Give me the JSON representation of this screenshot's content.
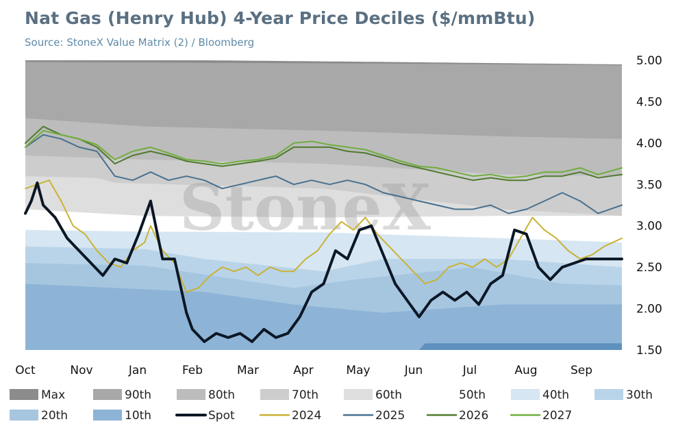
{
  "header": {
    "title": "Nat Gas (Henry Hub) 4-Year Price Deciles ($/mmBtu)",
    "subtitle": "Source: StoneX Value Matrix (2) / Bloomberg"
  },
  "watermark": "StoneX",
  "chart_data": {
    "type": "area",
    "title": "Nat Gas (Henry Hub) 4-Year Price Deciles ($/mmBtu)",
    "x_labels": [
      "Oct",
      "Nov",
      "Jan",
      "Feb",
      "Mar",
      "Apr",
      "May",
      "Jun",
      "Jul",
      "Aug",
      "Sep"
    ],
    "y_ticks": [
      "5.00",
      "4.50",
      "4.00",
      "3.50",
      "3.00",
      "2.50",
      "2.00",
      "1.50"
    ],
    "ylim": [
      1.5,
      5.0
    ],
    "y_axis_side": "right",
    "legend_position": "bottom",
    "deciles": [
      {
        "name": "Max",
        "color": "#8c8c8c",
        "x": [
          0,
          0.3,
          0.6,
          1.0
        ],
        "y": [
          5.0,
          5.0,
          4.98,
          4.95
        ]
      },
      {
        "name": "90th",
        "color": "#a8a8a8",
        "x": [
          0,
          0.3,
          0.6,
          1.0
        ],
        "y": [
          4.98,
          4.97,
          4.96,
          4.94
        ]
      },
      {
        "name": "80th",
        "color": "#bcbcbc",
        "x": [
          0,
          0.2,
          0.5,
          0.8,
          1.0
        ],
        "y": [
          4.3,
          4.2,
          4.15,
          4.08,
          4.05
        ]
      },
      {
        "name": "70th",
        "color": "#cdcdcd",
        "x": [
          0,
          0.2,
          0.5,
          0.8,
          1.0
        ],
        "y": [
          3.85,
          3.8,
          3.75,
          3.62,
          3.6
        ]
      },
      {
        "name": "60th",
        "color": "#dedede",
        "x": [
          0,
          0.12,
          0.15,
          0.5,
          0.8,
          1.0
        ],
        "y": [
          3.6,
          3.58,
          3.52,
          3.45,
          3.2,
          3.12
        ]
      },
      {
        "name": "50th",
        "color": "#ffffff",
        "x": [
          0,
          0.2,
          0.5,
          0.8,
          1.0
        ],
        "y": [
          3.2,
          3.12,
          3.1,
          3.12,
          3.12
        ]
      },
      {
        "name": "40th",
        "color": "#d6e6f2",
        "x": [
          0,
          0.2,
          0.5,
          0.8,
          1.0
        ],
        "y": [
          2.95,
          2.93,
          2.92,
          2.85,
          2.8
        ]
      },
      {
        "name": "30th",
        "color": "#b9d4e9",
        "x": [
          0,
          0.2,
          0.3,
          0.5,
          0.6,
          0.8,
          1.0
        ],
        "y": [
          2.75,
          2.72,
          2.6,
          2.45,
          2.6,
          2.6,
          2.5
        ]
      },
      {
        "name": "20th",
        "color": "#a6c6e0",
        "x": [
          0,
          0.2,
          0.45,
          0.55,
          0.75,
          0.9,
          1.0
        ],
        "y": [
          2.55,
          2.52,
          2.25,
          2.35,
          2.5,
          2.3,
          2.28
        ]
      },
      {
        "name": "10th",
        "color": "#8db4d6",
        "x": [
          0,
          0.3,
          0.45,
          0.6,
          0.8,
          1.0
        ],
        "y": [
          2.3,
          2.2,
          2.05,
          1.95,
          2.05,
          2.05
        ]
      }
    ],
    "spot_floor": {
      "color": "#5f91bf",
      "x": [
        0,
        0.66,
        0.67,
        1.0
      ],
      "y": [
        1.5,
        1.5,
        1.58,
        1.58
      ]
    },
    "series": [
      {
        "name": "Spot",
        "color": "#0c1725",
        "width": 4,
        "x": [
          0,
          0.01,
          0.02,
          0.03,
          0.05,
          0.07,
          0.09,
          0.11,
          0.13,
          0.15,
          0.17,
          0.19,
          0.21,
          0.23,
          0.25,
          0.27,
          0.28,
          0.3,
          0.32,
          0.34,
          0.36,
          0.38,
          0.4,
          0.42,
          0.44,
          0.46,
          0.48,
          0.5,
          0.52,
          0.54,
          0.56,
          0.58,
          0.6,
          0.62,
          0.64,
          0.66,
          0.68,
          0.7,
          0.72,
          0.74,
          0.76,
          0.78,
          0.8,
          0.82,
          0.84,
          0.86,
          0.88,
          0.9,
          0.92,
          0.94,
          0.96,
          0.98,
          1.0
        ],
        "y": [
          3.15,
          3.3,
          3.52,
          3.25,
          3.1,
          2.85,
          2.7,
          2.55,
          2.4,
          2.6,
          2.55,
          2.9,
          3.3,
          2.6,
          2.6,
          1.95,
          1.75,
          1.6,
          1.7,
          1.65,
          1.7,
          1.6,
          1.75,
          1.65,
          1.7,
          1.9,
          2.2,
          2.3,
          2.7,
          2.6,
          2.95,
          3.0,
          2.65,
          2.3,
          2.1,
          1.9,
          2.1,
          2.2,
          2.1,
          2.2,
          2.05,
          2.3,
          2.4,
          2.95,
          2.9,
          2.5,
          2.35,
          2.5,
          2.55,
          2.6,
          2.6,
          2.6,
          2.6
        ]
      },
      {
        "name": "2024",
        "color": "#c9b233",
        "width": 2,
        "x": [
          0,
          0.02,
          0.04,
          0.06,
          0.08,
          0.1,
          0.12,
          0.14,
          0.16,
          0.18,
          0.2,
          0.21,
          0.23,
          0.25,
          0.27,
          0.29,
          0.31,
          0.33,
          0.35,
          0.37,
          0.39,
          0.41,
          0.43,
          0.45,
          0.47,
          0.49,
          0.51,
          0.53,
          0.55,
          0.57,
          0.59,
          0.61,
          0.63,
          0.65,
          0.67,
          0.69,
          0.71,
          0.73,
          0.75,
          0.77,
          0.79,
          0.81,
          0.83,
          0.85,
          0.87,
          0.89,
          0.91,
          0.93,
          0.95,
          0.97,
          1.0
        ],
        "y": [
          3.45,
          3.5,
          3.55,
          3.3,
          3.0,
          2.9,
          2.7,
          2.55,
          2.5,
          2.7,
          2.8,
          3.0,
          2.7,
          2.55,
          2.2,
          2.25,
          2.4,
          2.5,
          2.45,
          2.5,
          2.4,
          2.5,
          2.45,
          2.45,
          2.6,
          2.7,
          2.9,
          3.05,
          2.95,
          3.1,
          2.9,
          2.75,
          2.6,
          2.45,
          2.3,
          2.35,
          2.5,
          2.55,
          2.5,
          2.6,
          2.5,
          2.6,
          2.85,
          3.1,
          2.95,
          2.85,
          2.7,
          2.6,
          2.65,
          2.75,
          2.85
        ]
      },
      {
        "name": "2025",
        "color": "#48708f",
        "width": 2,
        "x": [
          0,
          0.03,
          0.06,
          0.09,
          0.12,
          0.15,
          0.18,
          0.21,
          0.24,
          0.27,
          0.3,
          0.33,
          0.36,
          0.39,
          0.42,
          0.45,
          0.48,
          0.51,
          0.54,
          0.57,
          0.6,
          0.63,
          0.66,
          0.69,
          0.72,
          0.75,
          0.78,
          0.81,
          0.84,
          0.87,
          0.9,
          0.93,
          0.96,
          1.0
        ],
        "y": [
          3.95,
          4.1,
          4.05,
          3.95,
          3.9,
          3.6,
          3.55,
          3.65,
          3.55,
          3.6,
          3.55,
          3.45,
          3.5,
          3.55,
          3.6,
          3.5,
          3.55,
          3.5,
          3.55,
          3.5,
          3.4,
          3.35,
          3.3,
          3.25,
          3.2,
          3.2,
          3.25,
          3.15,
          3.2,
          3.3,
          3.4,
          3.3,
          3.15,
          3.25
        ]
      },
      {
        "name": "2026",
        "color": "#4f7a2e",
        "width": 2,
        "x": [
          0,
          0.03,
          0.06,
          0.09,
          0.12,
          0.15,
          0.18,
          0.21,
          0.24,
          0.27,
          0.3,
          0.33,
          0.36,
          0.39,
          0.42,
          0.45,
          0.48,
          0.51,
          0.54,
          0.57,
          0.6,
          0.63,
          0.66,
          0.69,
          0.72,
          0.75,
          0.78,
          0.81,
          0.84,
          0.87,
          0.9,
          0.93,
          0.96,
          1.0
        ],
        "y": [
          4.0,
          4.2,
          4.1,
          4.05,
          3.95,
          3.75,
          3.85,
          3.9,
          3.85,
          3.78,
          3.75,
          3.72,
          3.75,
          3.78,
          3.82,
          3.95,
          3.95,
          3.95,
          3.9,
          3.88,
          3.82,
          3.75,
          3.7,
          3.65,
          3.6,
          3.55,
          3.58,
          3.55,
          3.55,
          3.6,
          3.6,
          3.65,
          3.58,
          3.62
        ]
      },
      {
        "name": "2027",
        "color": "#6fae3c",
        "width": 2,
        "x": [
          0,
          0.03,
          0.06,
          0.09,
          0.12,
          0.15,
          0.18,
          0.21,
          0.24,
          0.27,
          0.3,
          0.33,
          0.36,
          0.39,
          0.42,
          0.45,
          0.48,
          0.51,
          0.54,
          0.57,
          0.6,
          0.63,
          0.66,
          0.69,
          0.72,
          0.75,
          0.78,
          0.81,
          0.84,
          0.87,
          0.9,
          0.93,
          0.96,
          1.0
        ],
        "y": [
          3.95,
          4.15,
          4.1,
          4.05,
          3.98,
          3.8,
          3.9,
          3.95,
          3.88,
          3.8,
          3.78,
          3.75,
          3.78,
          3.8,
          3.85,
          4.0,
          4.02,
          3.98,
          3.95,
          3.92,
          3.85,
          3.78,
          3.72,
          3.7,
          3.65,
          3.6,
          3.62,
          3.58,
          3.6,
          3.65,
          3.65,
          3.7,
          3.62,
          3.7
        ]
      }
    ],
    "legend": [
      {
        "label": "Max",
        "kind": "swatch",
        "color": "#8c8c8c"
      },
      {
        "label": "90th",
        "kind": "swatch",
        "color": "#a8a8a8"
      },
      {
        "label": "80th",
        "kind": "swatch",
        "color": "#bcbcbc"
      },
      {
        "label": "70th",
        "kind": "swatch",
        "color": "#cdcdcd"
      },
      {
        "label": "60th",
        "kind": "swatch",
        "color": "#dedede"
      },
      {
        "label": "50th",
        "kind": "swatch",
        "color": "#ffffff"
      },
      {
        "label": "40th",
        "kind": "swatch",
        "color": "#d6e6f2"
      },
      {
        "label": "30th",
        "kind": "swatch",
        "color": "#b9d4e9"
      },
      {
        "label": "20th",
        "kind": "swatch",
        "color": "#a6c6e0"
      },
      {
        "label": "10th",
        "kind": "swatch",
        "color": "#8db4d6"
      },
      {
        "label": "Spot",
        "kind": "line",
        "color": "#0c1725"
      },
      {
        "label": "2024",
        "kind": "line",
        "color": "#c9b233"
      },
      {
        "label": "2025",
        "kind": "line",
        "color": "#48708f"
      },
      {
        "label": "2026",
        "kind": "line",
        "color": "#4f7a2e"
      },
      {
        "label": "2027",
        "kind": "line",
        "color": "#6fae3c"
      }
    ]
  }
}
